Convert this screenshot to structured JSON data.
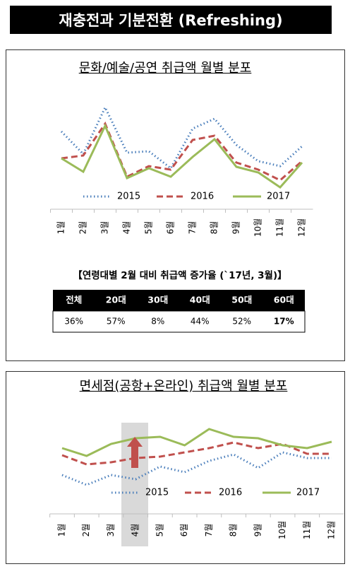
{
  "header": {
    "title": "재충전과 기분전환 (Refreshing)"
  },
  "chart_data": [
    {
      "type": "line",
      "title": "문화/예술/공연 취급액 월별 분포",
      "categories": [
        "1월",
        "2월",
        "3월",
        "4월",
        "5월",
        "6월",
        "7월",
        "8월",
        "9월",
        "10월",
        "11월",
        "12월"
      ],
      "ylim": [
        25,
        160
      ],
      "series": [
        {
          "name": "2015",
          "color": "#4a7ebb",
          "style": "dotted",
          "values": [
            114,
            82,
            148,
            84,
            86,
            62,
            118,
            132,
            95,
            72,
            65,
            93
          ]
        },
        {
          "name": "2016",
          "color": "#c0504d",
          "style": "dashed",
          "values": [
            76,
            80,
            125,
            50,
            65,
            60,
            102,
            108,
            70,
            60,
            45,
            72
          ]
        },
        {
          "name": "2017",
          "color": "#9bbb59",
          "style": "solid",
          "values": [
            76,
            57,
            122,
            48,
            62,
            50,
            78,
            103,
            64,
            56,
            35,
            70
          ]
        }
      ]
    },
    {
      "type": "line",
      "title": "면세점(공항+온라인) 취급액 월별 분포",
      "categories": [
        "1월",
        "2월",
        "3월",
        "4월",
        "5월",
        "6월",
        "7월",
        "8월",
        "9월",
        "10월",
        "11월",
        "12월"
      ],
      "ylim": [
        100,
        220
      ],
      "series": [
        {
          "name": "2015",
          "color": "#4a7ebb",
          "style": "dotted",
          "values": [
            128,
            114,
            128,
            122,
            140,
            132,
            148,
            157,
            138,
            160,
            152,
            152
          ]
        },
        {
          "name": "2016",
          "color": "#c0504d",
          "style": "dashed",
          "values": [
            156,
            143,
            146,
            152,
            154,
            160,
            166,
            174,
            166,
            172,
            158,
            158
          ]
        },
        {
          "name": "2017",
          "color": "#9bbb59",
          "style": "solid",
          "values": [
            166,
            155,
            172,
            180,
            182,
            170,
            193,
            182,
            180,
            170,
            166,
            175
          ]
        }
      ]
    }
  ],
  "table": {
    "caption": "【연령대별 2월 대비 취급액 증가율 (`17년, 3월)】",
    "header": [
      "전체",
      "20대",
      "30대",
      "40대",
      "50대",
      "60대"
    ],
    "rows": [
      [
        "36%",
        "57%",
        "8%",
        "44%",
        "52%",
        "17%"
      ]
    ]
  }
}
